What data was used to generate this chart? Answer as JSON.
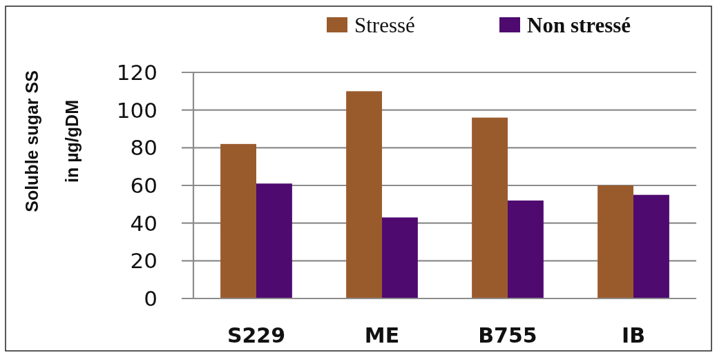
{
  "chart_data": {
    "type": "bar",
    "categories": [
      "S229",
      "ME",
      "B755",
      "IB"
    ],
    "series": [
      {
        "name": "Stressé",
        "color": "#9a5b2c",
        "values": [
          82,
          110,
          96,
          60
        ]
      },
      {
        "name": "Non stressé",
        "color": "#4f0a70",
        "values": [
          61,
          43,
          52,
          55
        ]
      }
    ],
    "ylabel": "Soluble sugar SS\nin µg/gDM",
    "ylim": [
      0,
      120
    ],
    "yticks": [
      0,
      20,
      40,
      60,
      80,
      100,
      120
    ],
    "grid": "y",
    "legend": "top"
  }
}
